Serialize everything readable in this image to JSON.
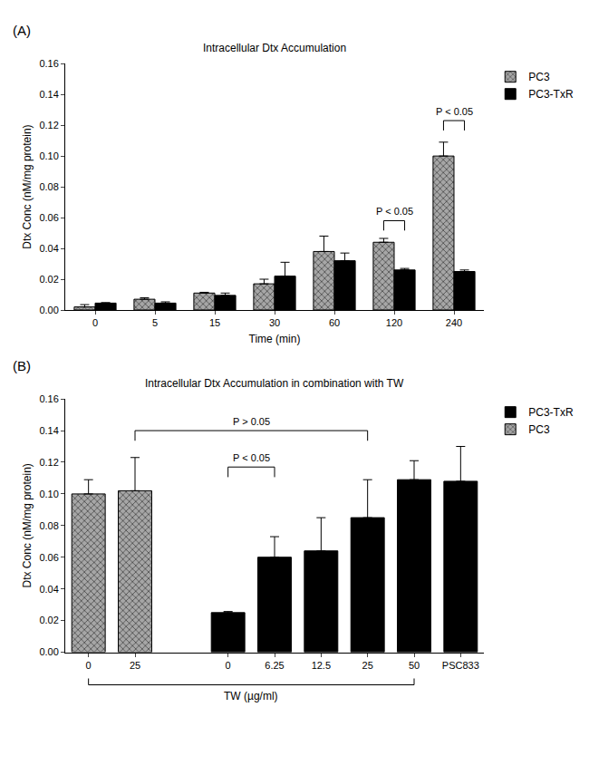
{
  "chart_data": [
    {
      "type": "bar",
      "panel": "(A)",
      "title": "Intracellular Dtx Accumulation",
      "xlabel": "Time (min)",
      "ylabel": "Dtx Conc (nM/mg protein)",
      "categories": [
        "0",
        "5",
        "15",
        "30",
        "60",
        "120",
        "240"
      ],
      "series": [
        {
          "name": "PC3",
          "color": "#a6a6a6",
          "marker": "hatched",
          "values": [
            0.002,
            0.007,
            0.011,
            0.017,
            0.038,
            0.044,
            0.1
          ],
          "errors": [
            0.0015,
            0.001,
            0.0005,
            0.003,
            0.01,
            0.0025,
            0.009
          ]
        },
        {
          "name": "PC3-TxR",
          "color": "#000000",
          "values": [
            0.0045,
            0.0045,
            0.0095,
            0.022,
            0.032,
            0.026,
            0.025
          ],
          "errors": [
            0.0003,
            0.0008,
            0.0015,
            0.009,
            0.005,
            0.001,
            0.001
          ]
        }
      ],
      "annotations": [
        {
          "text": "P < 0.05",
          "at": 5,
          "y": 0.058
        },
        {
          "text": "P < 0.05",
          "at": 6,
          "y": 0.123
        }
      ],
      "ylim": [
        0,
        0.16
      ],
      "yticks": [
        {
          "value": 0,
          "label": "0.00"
        },
        {
          "value": 0.02,
          "label": "0.02"
        },
        {
          "value": 0.04,
          "label": "0.04"
        },
        {
          "value": 0.06,
          "label": "0.06"
        },
        {
          "value": 0.08,
          "label": "0.08"
        },
        {
          "value": 0.1,
          "label": "0.10"
        },
        {
          "value": 0.12,
          "label": "0.12"
        },
        {
          "value": 0.14,
          "label": "0.14"
        },
        {
          "value": 0.16,
          "label": "0.16"
        }
      ],
      "grid": false,
      "legend": "top right"
    },
    {
      "type": "bar",
      "panel": "(B)",
      "title": "Intracellular Dtx Accumulation in combination with TW",
      "xlabel": "TW (µg/ml)",
      "xlabel_span": [
        0,
        7
      ],
      "ylabel": "Dtx Conc (nM/mg protein)",
      "categories": [
        "0",
        "25",
        null,
        "0",
        "6.25",
        "12.5",
        "25",
        "50",
        "PSC833"
      ],
      "series": [
        {
          "name": "PC3-TxR",
          "color": "#000000",
          "values": [
            null,
            null,
            null,
            0.025,
            0.06,
            0.064,
            0.085,
            0.109,
            0.108
          ],
          "errors": [
            null,
            null,
            null,
            0.0007,
            0.013,
            0.021,
            0.024,
            0.012,
            0.022
          ]
        },
        {
          "name": "PC3",
          "color": "#a6a6a6",
          "marker": "hatched",
          "values": [
            0.1,
            0.102,
            null,
            null,
            null,
            null,
            null,
            null,
            null
          ],
          "errors": [
            0.009,
            0.021,
            null,
            null,
            null,
            null,
            null,
            null,
            null
          ]
        }
      ],
      "annotations": [
        {
          "text": "P > 0.05",
          "from": 1,
          "to": 6,
          "y": 0.14
        },
        {
          "text": "P < 0.05",
          "from": 3,
          "to": 4,
          "y": 0.117
        }
      ],
      "ylim": [
        0,
        0.16
      ],
      "yticks": [
        {
          "value": 0,
          "label": "0.00"
        },
        {
          "value": 0.02,
          "label": "0.02"
        },
        {
          "value": 0.04,
          "label": "0.04"
        },
        {
          "value": 0.06,
          "label": "0.06"
        },
        {
          "value": 0.08,
          "label": "0.08"
        },
        {
          "value": 0.1,
          "label": "0.10"
        },
        {
          "value": 0.12,
          "label": "0.12"
        },
        {
          "value": 0.14,
          "label": "0.14"
        },
        {
          "value": 0.16,
          "label": "0.16"
        }
      ],
      "grid": false,
      "legend": "top right"
    }
  ]
}
